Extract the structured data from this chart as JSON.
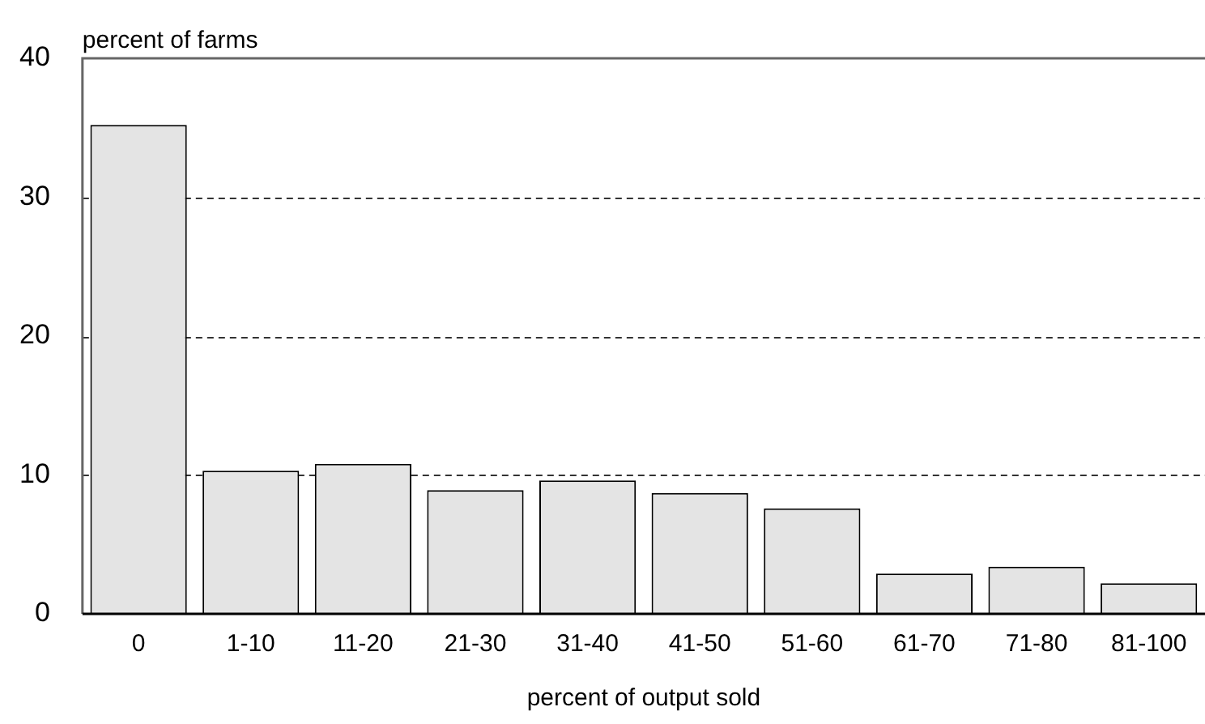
{
  "chart_data": {
    "type": "bar",
    "ylabel": "percent of farms",
    "xlabel": "percent of output sold",
    "categories": [
      "0",
      "1-10",
      "11-20",
      "21-30",
      "31-40",
      "41-50",
      "51-60",
      "61-70",
      "71-80",
      "81-100"
    ],
    "values": [
      35.2,
      10.3,
      10.8,
      8.9,
      9.6,
      8.7,
      7.6,
      2.9,
      3.4,
      2.2
    ],
    "color": "#e4e4e4",
    "ylim": [
      0,
      40
    ],
    "yticks": [
      0,
      10,
      20,
      30,
      40
    ],
    "grid": "y",
    "legend": false
  }
}
